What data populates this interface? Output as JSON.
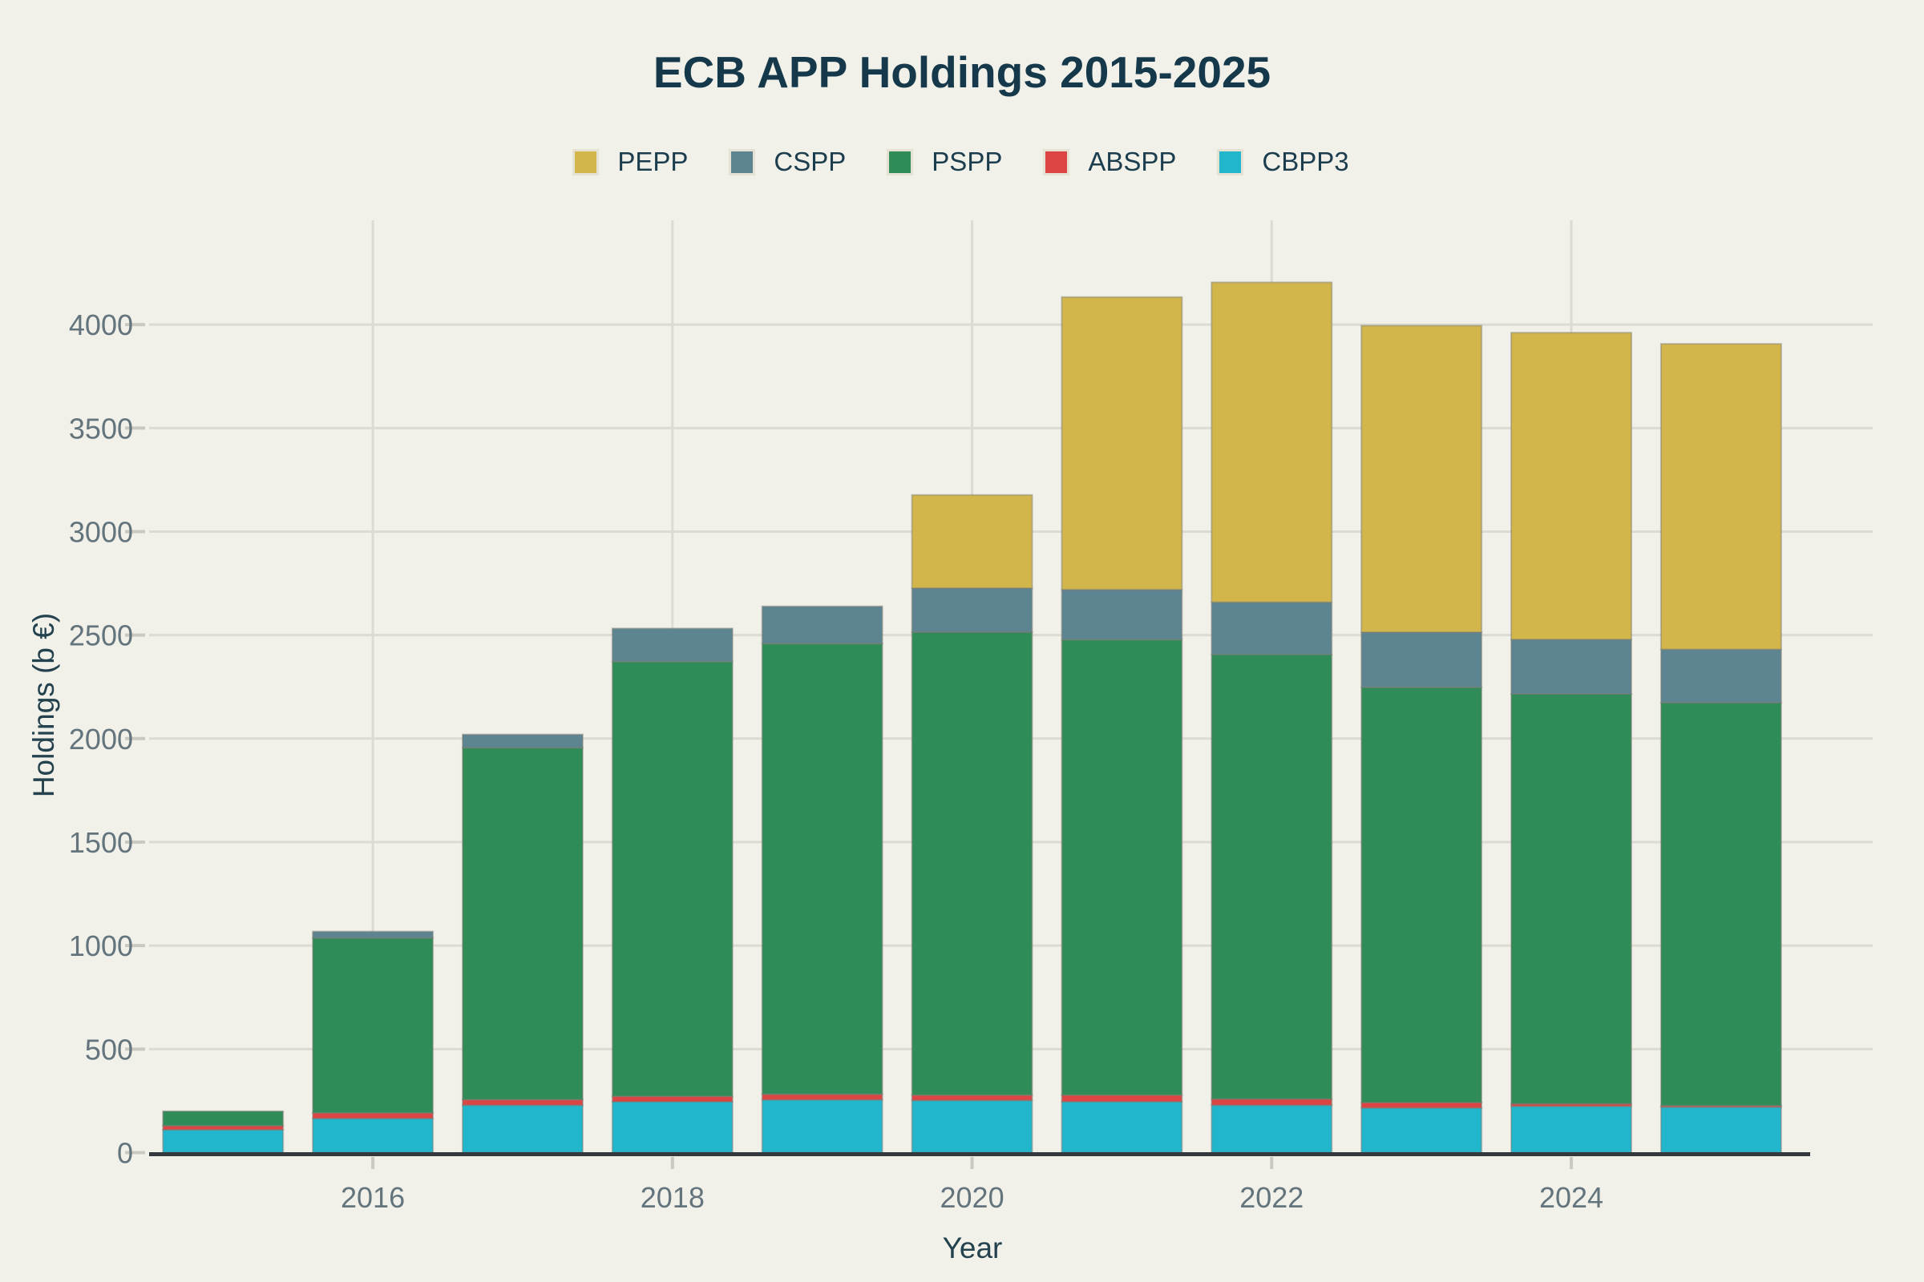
{
  "title": "ECB APP Holdings 2015-2025",
  "x_axis_title": "Year",
  "y_axis_title": "Holdings (b €)",
  "legend": {
    "items": [
      {
        "label": "PEPP",
        "color": "#d2b64b"
      },
      {
        "label": "CSPP",
        "color": "#5d8591"
      },
      {
        "label": "PSPP",
        "color": "#2f8b57"
      },
      {
        "label": "ABSPP",
        "color": "#dd4444"
      },
      {
        "label": "CBPP3",
        "color": "#22b6cd"
      }
    ]
  },
  "y_ticks": [
    "0",
    "500",
    "1000",
    "1500",
    "2000",
    "2500",
    "3000",
    "3500",
    "4000"
  ],
  "x_ticks": [
    "2016",
    "2018",
    "2020",
    "2022",
    "2024"
  ],
  "colors": {
    "background": "#f1f1ea",
    "title_text": "#15394a",
    "legend_text": "#1c3d4d",
    "axis_title_text": "#24424e",
    "tick_label_text": "#64747d",
    "gridline": "#dcdbd1",
    "tick_mark": "#c9c9c0",
    "zero_axis": "#33383c"
  },
  "chart_data": {
    "type": "bar",
    "stacked": true,
    "title": "ECB APP Holdings 2015-2025",
    "xlabel": "Year",
    "ylabel": "Holdings (b €)",
    "x": [
      2015,
      2016,
      2017,
      2018,
      2019,
      2020,
      2021,
      2022,
      2023,
      2024,
      2025
    ],
    "x_tick_labels": [
      2016,
      2018,
      2020,
      2022,
      2024
    ],
    "ylim": [
      0,
      4500
    ],
    "grid": true,
    "legend_position": "top",
    "series": [
      {
        "name": "CBPP3",
        "color": "#22b6cd",
        "values": [
          110,
          165,
          229,
          246,
          255,
          252,
          246,
          229,
          216,
          224,
          220
        ]
      },
      {
        "name": "ABSPP",
        "color": "#dd4444",
        "values": [
          20,
          27,
          27,
          26,
          27,
          26,
          32,
          30,
          26,
          12,
          7
        ]
      },
      {
        "name": "PSPP",
        "color": "#2f8b57",
        "values": [
          70,
          845,
          1700,
          2100,
          2177,
          2236,
          2200,
          2148,
          2006,
          1980,
          1947
        ]
      },
      {
        "name": "CSPP",
        "color": "#5d8591",
        "values": [
          0,
          31,
          64,
          160,
          180,
          213,
          242,
          252,
          266,
          263,
          257
        ]
      },
      {
        "name": "PEPP",
        "color": "#d2b64b",
        "values": [
          0,
          0,
          0,
          0,
          0,
          450,
          1413,
          1545,
          1481,
          1482,
          1476
        ]
      }
    ],
    "totals": [
      200,
      1068,
      2020,
      2532,
      2639,
      3177,
      4133,
      4204,
      3995,
      3961,
      3907
    ]
  }
}
